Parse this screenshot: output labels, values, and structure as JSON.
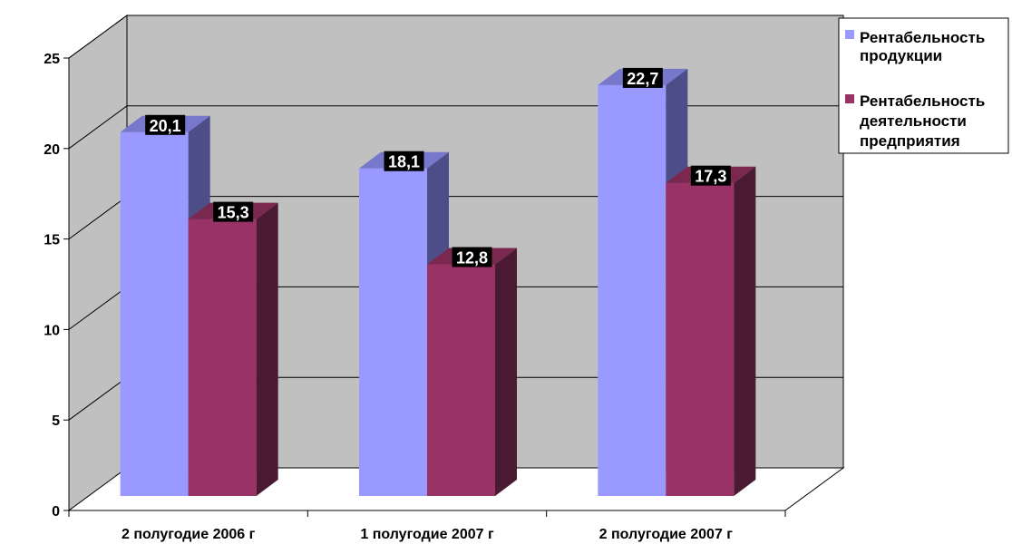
{
  "chart_data": {
    "type": "bar",
    "title": "",
    "xlabel": "",
    "ylabel": "",
    "categories": [
      "2 полугодие 2006 г",
      "1 полугодие 2007 г",
      "2 полугодие 2007 г"
    ],
    "series": [
      {
        "name": "Рентабельность продукции",
        "values": [
          20.1,
          18.1,
          22.7
        ],
        "labels": [
          "20,1",
          "18,1",
          "22,7"
        ]
      },
      {
        "name": "Рентабельность деятельности предприятия",
        "values": [
          15.3,
          12.8,
          17.3
        ],
        "labels": [
          "15,3",
          "12,8",
          "17,3"
        ]
      }
    ],
    "ylim": [
      0,
      25
    ],
    "yticks": [
      "0",
      "5",
      "10",
      "15",
      "20",
      "25"
    ],
    "grid": true,
    "legend_position": "right",
    "legend": {
      "items": [
        {
          "lines": [
            "Рентабельность",
            "продукции"
          ]
        },
        {
          "lines": [
            "Рентабельность",
            "деятельности",
            "предприятия"
          ]
        }
      ]
    },
    "colors": {
      "series1_front": "#9999ff",
      "series1_top": "#7777cc",
      "series1_side": "#4d4d88",
      "series2_front": "#993366",
      "series2_top": "#7a2850",
      "series2_side": "#4a1a33",
      "back_wall": "#c0c0c0",
      "side_wall": "#c0c0c0",
      "floor": "#ffffff",
      "label_bg": "#000000",
      "label_text": "#ffffff"
    }
  }
}
